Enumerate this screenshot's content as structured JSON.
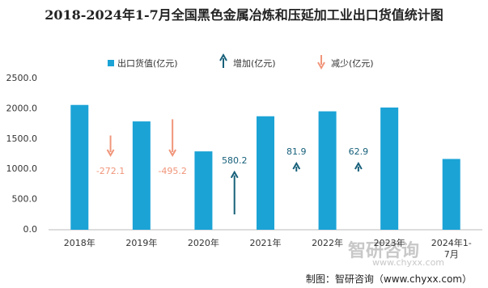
{
  "chart_data": {
    "type": "bar",
    "title": "2018-2024年1-7月全国黑色金属冶炼和压延加工业出口货值统计图",
    "categories": [
      "2018年",
      "2019年",
      "2020年",
      "2021年",
      "2022年",
      "2023年",
      "2024年1-7月"
    ],
    "series": [
      {
        "name": "出口货值(亿元)",
        "color": "#1ba3d6",
        "values": [
          2062.5,
          1790.4,
          1295.2,
          1875.4,
          1957.3,
          2020.2,
          1170
        ]
      }
    ],
    "changes": {
      "values": [
        null,
        -272.1,
        -495.2,
        580.2,
        81.9,
        62.9,
        null
      ]
    },
    "increase": {
      "name": "增加(亿元)",
      "color": "#17607a"
    },
    "decrease": {
      "name": "减少(亿元)",
      "color": "#f0957a"
    },
    "ylim": [
      0,
      2500
    ],
    "yticks": [
      {
        "value": 0,
        "label": "0.0"
      },
      {
        "value": 500,
        "label": "500.0"
      },
      {
        "value": 1000,
        "label": "1000.0"
      },
      {
        "value": 1500,
        "label": "1500.0"
      },
      {
        "value": 2000,
        "label": "2000.0"
      },
      {
        "value": 2500,
        "label": "2500.0"
      }
    ],
    "source": "制图：智研咨询（www.chyxx.com）",
    "watermark": "智研咨询",
    "watermark_url": "www.chyxx.com"
  }
}
